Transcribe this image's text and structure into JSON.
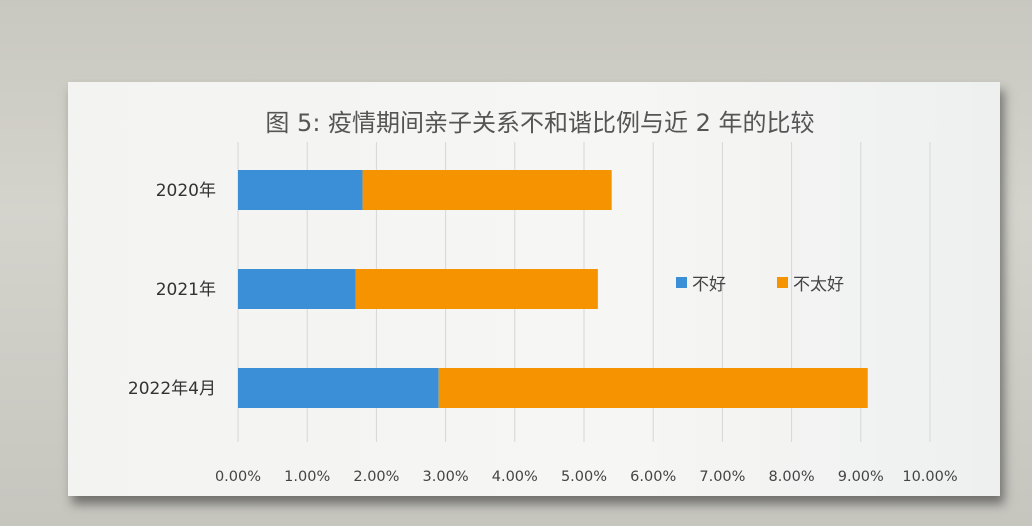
{
  "chart_data": {
    "type": "bar",
    "orientation": "horizontal",
    "stacked": true,
    "title": "图 5: 疫情期间亲子关系不和谐比例与近 2 年的比较",
    "categories": [
      "2020年",
      "2021年",
      "2022年4月"
    ],
    "series": [
      {
        "name": "不好",
        "color": "#3a8fd6",
        "values": [
          1.8,
          1.7,
          2.9
        ]
      },
      {
        "name": "不太好",
        "color": "#f59300",
        "values": [
          3.6,
          3.5,
          6.2
        ]
      }
    ],
    "xlim": [
      0,
      10
    ],
    "x_unit": "%",
    "x_tick_labels": [
      "0.00%",
      "1.00%",
      "2.00%",
      "3.00%",
      "4.00%",
      "5.00%",
      "6.00%",
      "7.00%",
      "8.00%",
      "9.00%",
      "10.00%"
    ],
    "grid": "vertical",
    "legend_position": "right"
  }
}
